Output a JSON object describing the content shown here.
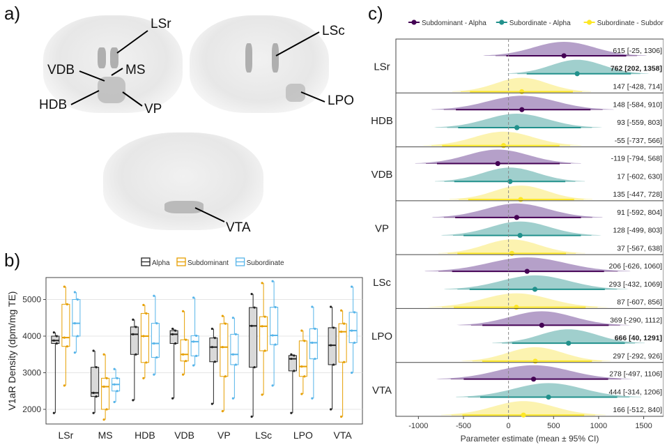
{
  "panel_labels": {
    "a": "a)",
    "b": "b)",
    "c": "c)"
  },
  "panel_a": {
    "regions": [
      "LSr",
      "VDB",
      "MS",
      "HDB",
      "VP",
      "LSc",
      "LPO",
      "VTA"
    ]
  },
  "colors": {
    "alpha": "#222222",
    "subdominant": "#e69f00",
    "subordinate": "#56b4e9",
    "c_sub_alpha": "#440154",
    "c_subord_alpha": "#21918c",
    "c_subord_sub": "#fde725"
  },
  "chart_data": [
    {
      "type": "box",
      "ylabel": "V1aR Density (dpm/mg TE)",
      "xlabel": "",
      "ylim": [
        1600,
        5600
      ],
      "yticks": [
        2000,
        3000,
        4000,
        5000
      ],
      "categories": [
        "LSr",
        "MS",
        "HDB",
        "VDB",
        "VP",
        "LSc",
        "LPO",
        "VTA"
      ],
      "legend": [
        "Alpha",
        "Subdominant",
        "Subordinate"
      ],
      "legend_position": "top",
      "series": [
        {
          "name": "Alpha",
          "boxes": [
            {
              "min": 1900,
              "q1": 3800,
              "median": 3880,
              "q3": 4000,
              "max": 4100
            },
            {
              "min": 1900,
              "q1": 2350,
              "median": 2450,
              "q3": 3150,
              "max": 3600
            },
            {
              "min": 2250,
              "q1": 3500,
              "median": 4050,
              "q3": 4250,
              "max": 4450
            },
            {
              "min": 2300,
              "q1": 3800,
              "median": 4050,
              "q3": 4150,
              "max": 4200
            },
            {
              "min": 2150,
              "q1": 3300,
              "median": 3700,
              "q3": 3950,
              "max": 4200
            },
            {
              "min": 1800,
              "q1": 3150,
              "median": 4280,
              "q3": 4780,
              "max": 5150
            },
            {
              "min": 1900,
              "q1": 3050,
              "median": 3380,
              "q3": 3470,
              "max": 3500
            },
            {
              "min": 2000,
              "q1": 3220,
              "median": 3750,
              "q3": 4230,
              "max": 4800
            }
          ]
        },
        {
          "name": "Subdominant",
          "boxes": [
            {
              "min": 2650,
              "q1": 3720,
              "median": 3960,
              "q3": 4870,
              "max": 5350
            },
            {
              "min": 1720,
              "q1": 2000,
              "median": 2620,
              "q3": 2850,
              "max": 3500
            },
            {
              "min": 2850,
              "q1": 3280,
              "median": 4000,
              "q3": 4620,
              "max": 4850
            },
            {
              "min": 2950,
              "q1": 3320,
              "median": 3500,
              "q3": 3900,
              "max": 4680
            },
            {
              "min": 1950,
              "q1": 2900,
              "median": 3700,
              "q3": 4340,
              "max": 4550
            },
            {
              "min": 2400,
              "q1": 3600,
              "median": 4270,
              "q3": 4530,
              "max": 5450
            },
            {
              "min": 2420,
              "q1": 2900,
              "median": 3170,
              "q3": 3870,
              "max": 4150
            },
            {
              "min": 1800,
              "q1": 3290,
              "median": 4120,
              "q3": 4340,
              "max": 4700
            }
          ]
        },
        {
          "name": "Subordinate",
          "boxes": [
            {
              "min": 3550,
              "q1": 4000,
              "median": 4350,
              "q3": 5000,
              "max": 5200
            },
            {
              "min": 2200,
              "q1": 2500,
              "median": 2680,
              "q3": 2850,
              "max": 3100
            },
            {
              "min": 2950,
              "q1": 3420,
              "median": 3800,
              "q3": 4350,
              "max": 5100
            },
            {
              "min": 3200,
              "q1": 3460,
              "median": 3850,
              "q3": 4010,
              "max": 5050
            },
            {
              "min": 2300,
              "q1": 3220,
              "median": 3500,
              "q3": 4050,
              "max": 4500
            },
            {
              "min": 2650,
              "q1": 3770,
              "median": 4020,
              "q3": 4790,
              "max": 5500
            },
            {
              "min": 2300,
              "q1": 3380,
              "median": 3820,
              "q3": 4200,
              "max": 4800
            },
            {
              "min": 3000,
              "q1": 3820,
              "median": 4150,
              "q3": 4650,
              "max": 5350
            }
          ]
        }
      ]
    },
    {
      "type": "interval",
      "xlabel": "Parameter estimate (mean ± 95% CI)",
      "xlim": [
        -1250,
        1720
      ],
      "xticks": [
        -1000,
        -500,
        0,
        500,
        1000,
        1500
      ],
      "legend": [
        "Subdominant - Alpha",
        "Subordinate - Alpha",
        "Subordinate - Subdominant"
      ],
      "legend_position": "top",
      "regions": [
        {
          "name": "LSr",
          "rows": [
            {
              "contrast": "Subdominant - Alpha",
              "mean": 615,
              "lo": -25,
              "hi": 1306,
              "label": "615 [-25, 1306]",
              "bold": false
            },
            {
              "contrast": "Subordinate - Alpha",
              "mean": 762,
              "lo": 202,
              "hi": 1358,
              "label": "762 [202, 1358]",
              "bold": true
            },
            {
              "contrast": "Subordinate - Subdominant",
              "mean": 147,
              "lo": -428,
              "hi": 714,
              "label": "147 [-428, 714]",
              "bold": false
            }
          ]
        },
        {
          "name": "HDB",
          "rows": [
            {
              "contrast": "Subdominant - Alpha",
              "mean": 148,
              "lo": -584,
              "hi": 910,
              "label": "148 [-584, 910]",
              "bold": false
            },
            {
              "contrast": "Subordinate - Alpha",
              "mean": 93,
              "lo": -559,
              "hi": 803,
              "label": "93 [-559, 803]",
              "bold": false
            },
            {
              "contrast": "Subordinate - Subdominant",
              "mean": -55,
              "lo": -737,
              "hi": 566,
              "label": "-55 [-737, 566]",
              "bold": false
            }
          ]
        },
        {
          "name": "VDB",
          "rows": [
            {
              "contrast": "Subdominant - Alpha",
              "mean": -119,
              "lo": -794,
              "hi": 568,
              "label": "-119 [-794, 568]",
              "bold": false
            },
            {
              "contrast": "Subordinate - Alpha",
              "mean": 17,
              "lo": -602,
              "hi": 630,
              "label": "17 [-602, 630]",
              "bold": false
            },
            {
              "contrast": "Subordinate - Subdominant",
              "mean": 135,
              "lo": -447,
              "hi": 728,
              "label": "135 [-447, 728]",
              "bold": false
            }
          ]
        },
        {
          "name": "VP",
          "rows": [
            {
              "contrast": "Subdominant - Alpha",
              "mean": 91,
              "lo": -592,
              "hi": 804,
              "label": "91 [-592, 804]",
              "bold": false
            },
            {
              "contrast": "Subordinate - Alpha",
              "mean": 128,
              "lo": -499,
              "hi": 803,
              "label": "128 [-499, 803]",
              "bold": false
            },
            {
              "contrast": "Subordinate - Subdominant",
              "mean": 37,
              "lo": -567,
              "hi": 638,
              "label": "37 [-567, 638]",
              "bold": false
            }
          ]
        },
        {
          "name": "LSc",
          "rows": [
            {
              "contrast": "Subdominant - Alpha",
              "mean": 206,
              "lo": -626,
              "hi": 1060,
              "label": "206 [-626, 1060]",
              "bold": false
            },
            {
              "contrast": "Subordinate - Alpha",
              "mean": 293,
              "lo": -432,
              "hi": 1069,
              "label": "293 [-432, 1069]",
              "bold": false
            },
            {
              "contrast": "Subordinate - Subdominant",
              "mean": 87,
              "lo": -607,
              "hi": 856,
              "label": "87 [-607, 856]",
              "bold": false
            }
          ]
        },
        {
          "name": "LPO",
          "rows": [
            {
              "contrast": "Subdominant - Alpha",
              "mean": 369,
              "lo": -290,
              "hi": 1112,
              "label": "369 [-290, 1112]",
              "bold": false
            },
            {
              "contrast": "Subordinate - Alpha",
              "mean": 666,
              "lo": 40,
              "hi": 1291,
              "label": "666 [40, 1291]",
              "bold": true
            },
            {
              "contrast": "Subordinate - Subdominant",
              "mean": 297,
              "lo": -292,
              "hi": 926,
              "label": "297 [-292, 926]",
              "bold": false
            }
          ]
        },
        {
          "name": "VTA",
          "rows": [
            {
              "contrast": "Subdominant - Alpha",
              "mean": 278,
              "lo": -497,
              "hi": 1106,
              "label": "278 [-497, 1106]",
              "bold": false
            },
            {
              "contrast": "Subordinate - Alpha",
              "mean": 444,
              "lo": -314,
              "hi": 1206,
              "label": "444 [-314, 1206]",
              "bold": false
            },
            {
              "contrast": "Subordinate - Subdominant",
              "mean": 166,
              "lo": -512,
              "hi": 840,
              "label": "166 [-512, 840]",
              "bold": false
            }
          ]
        }
      ]
    }
  ]
}
